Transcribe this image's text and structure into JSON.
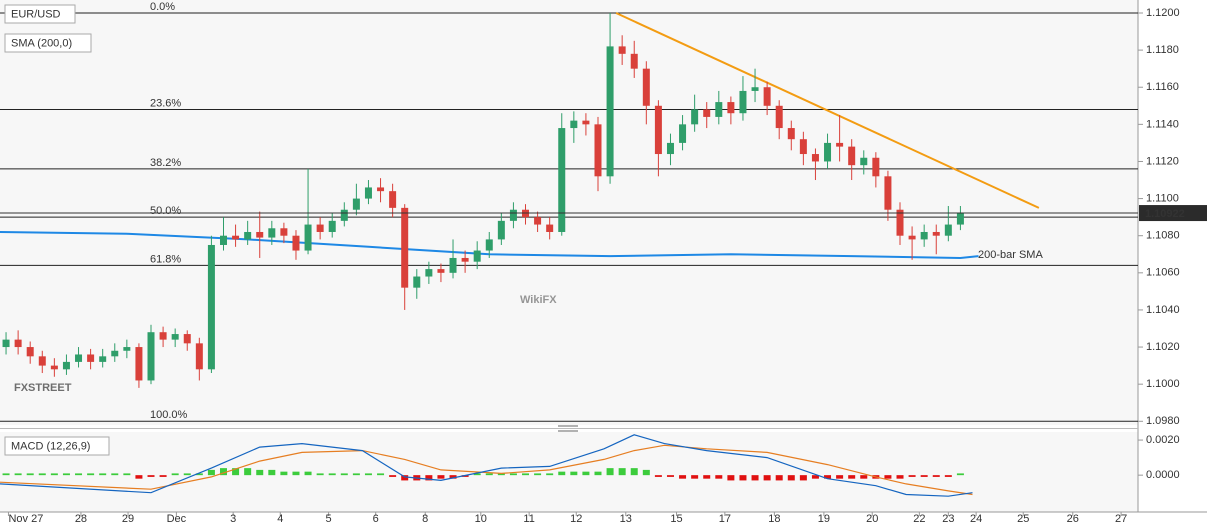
{
  "chart_data": [
    {
      "type": "candlestick",
      "title": "EUR/USD",
      "up_color": "#2f9e6a",
      "down_color": "#d9403a",
      "xlim": [
        -0.5,
        93.7
      ],
      "ylim": [
        1.0978,
        1.1207
      ],
      "yticks": [
        {
          "value": 1.098,
          "label": "1.0980"
        },
        {
          "value": 1.1,
          "label": "1.1000"
        },
        {
          "value": 1.102,
          "label": "1.1020"
        },
        {
          "value": 1.104,
          "label": "1.1040"
        },
        {
          "value": 1.106,
          "label": "1.1060"
        },
        {
          "value": 1.108,
          "label": "1.1080"
        },
        {
          "value": 1.11,
          "label": "1.1100"
        },
        {
          "value": 1.112,
          "label": "1.1120"
        },
        {
          "value": 1.114,
          "label": "1.1140"
        },
        {
          "value": 1.116,
          "label": "1.1160"
        },
        {
          "value": 1.118,
          "label": "1.1180"
        },
        {
          "value": 1.12,
          "label": "1.1200"
        }
      ],
      "ohlc": [
        [
          1.102,
          1.1028,
          1.1016,
          1.1024
        ],
        [
          1.1024,
          1.1029,
          1.1016,
          1.102
        ],
        [
          1.102,
          1.1023,
          1.1011,
          1.1015
        ],
        [
          1.1015,
          1.1018,
          1.1006,
          1.101
        ],
        [
          1.101,
          1.1014,
          1.1004,
          1.1008
        ],
        [
          1.1008,
          1.1016,
          1.1005,
          1.1012
        ],
        [
          1.1012,
          1.102,
          1.1009,
          1.1016
        ],
        [
          1.1016,
          1.1019,
          1.1008,
          1.1012
        ],
        [
          1.1012,
          1.1019,
          1.1009,
          1.1015
        ],
        [
          1.1015,
          1.1022,
          1.1012,
          1.1018
        ],
        [
          1.1018,
          1.1024,
          1.1014,
          1.102
        ],
        [
          1.102,
          1.1022,
          1.0998,
          1.1002
        ],
        [
          1.1002,
          1.1032,
          1.1,
          1.1028
        ],
        [
          1.1028,
          1.1031,
          1.102,
          1.1024
        ],
        [
          1.1024,
          1.103,
          1.102,
          1.1027
        ],
        [
          1.1027,
          1.1029,
          1.1018,
          1.1022
        ],
        [
          1.1022,
          1.1025,
          1.1002,
          1.1008
        ],
        [
          1.1008,
          1.108,
          1.1006,
          1.1075
        ],
        [
          1.1075,
          1.109,
          1.1072,
          1.108
        ],
        [
          1.108,
          1.1086,
          1.1074,
          1.1078
        ],
        [
          1.1078,
          1.1088,
          1.1075,
          1.1082
        ],
        [
          1.1082,
          1.1093,
          1.1068,
          1.1079
        ],
        [
          1.1079,
          1.1088,
          1.1075,
          1.1084
        ],
        [
          1.1084,
          1.1087,
          1.1076,
          1.108
        ],
        [
          1.108,
          1.1083,
          1.1067,
          1.1072
        ],
        [
          1.1072,
          1.1116,
          1.107,
          1.1086
        ],
        [
          1.1086,
          1.109,
          1.1078,
          1.1082
        ],
        [
          1.1082,
          1.1092,
          1.1079,
          1.1088
        ],
        [
          1.1088,
          1.1098,
          1.1085,
          1.1094
        ],
        [
          1.1094,
          1.1108,
          1.1091,
          1.11
        ],
        [
          1.11,
          1.111,
          1.1097,
          1.1106
        ],
        [
          1.1106,
          1.1111,
          1.1098,
          1.1104
        ],
        [
          1.1104,
          1.1108,
          1.109,
          1.1095
        ],
        [
          1.1095,
          1.1097,
          1.104,
          1.1052
        ],
        [
          1.1052,
          1.1062,
          1.1046,
          1.1058
        ],
        [
          1.1058,
          1.1066,
          1.1054,
          1.1062
        ],
        [
          1.1062,
          1.1065,
          1.1055,
          1.106
        ],
        [
          1.106,
          1.1078,
          1.1057,
          1.1068
        ],
        [
          1.1068,
          1.1072,
          1.106,
          1.1066
        ],
        [
          1.1066,
          1.1077,
          1.1062,
          1.1072
        ],
        [
          1.1072,
          1.1082,
          1.1068,
          1.1078
        ],
        [
          1.1078,
          1.1092,
          1.1075,
          1.1088
        ],
        [
          1.1088,
          1.1098,
          1.1084,
          1.1094
        ],
        [
          1.1094,
          1.1097,
          1.1086,
          1.109
        ],
        [
          1.109,
          1.1093,
          1.1082,
          1.1086
        ],
        [
          1.1086,
          1.109,
          1.1078,
          1.1082
        ],
        [
          1.1082,
          1.1146,
          1.108,
          1.1138
        ],
        [
          1.1138,
          1.1147,
          1.113,
          1.1142
        ],
        [
          1.1142,
          1.1146,
          1.1134,
          1.114
        ],
        [
          1.114,
          1.1144,
          1.1104,
          1.1112
        ],
        [
          1.1112,
          1.12,
          1.1108,
          1.1182
        ],
        [
          1.1182,
          1.1188,
          1.1172,
          1.1178
        ],
        [
          1.1178,
          1.1185,
          1.1165,
          1.117
        ],
        [
          1.117,
          1.1174,
          1.114,
          1.115
        ],
        [
          1.115,
          1.1153,
          1.1112,
          1.1124
        ],
        [
          1.1124,
          1.1135,
          1.1118,
          1.113
        ],
        [
          1.113,
          1.1145,
          1.1126,
          1.114
        ],
        [
          1.114,
          1.1156,
          1.1136,
          1.1148
        ],
        [
          1.1148,
          1.1152,
          1.1138,
          1.1144
        ],
        [
          1.1144,
          1.1158,
          1.114,
          1.1152
        ],
        [
          1.1152,
          1.1155,
          1.114,
          1.1146
        ],
        [
          1.1146,
          1.1166,
          1.1142,
          1.1158
        ],
        [
          1.1158,
          1.117,
          1.1152,
          1.116
        ],
        [
          1.116,
          1.1163,
          1.1145,
          1.115
        ],
        [
          1.115,
          1.1153,
          1.1132,
          1.1138
        ],
        [
          1.1138,
          1.1142,
          1.1126,
          1.1132
        ],
        [
          1.1132,
          1.1136,
          1.1118,
          1.1124
        ],
        [
          1.1124,
          1.1127,
          1.111,
          1.112
        ],
        [
          1.112,
          1.1135,
          1.1116,
          1.113
        ],
        [
          1.113,
          1.1145,
          1.112,
          1.1128
        ],
        [
          1.1128,
          1.1132,
          1.111,
          1.1118
        ],
        [
          1.1118,
          1.1126,
          1.1113,
          1.1122
        ],
        [
          1.1122,
          1.1125,
          1.1106,
          1.1112
        ],
        [
          1.1112,
          1.1115,
          1.1088,
          1.1094
        ],
        [
          1.1094,
          1.1098,
          1.1075,
          1.108
        ],
        [
          1.108,
          1.1085,
          1.1067,
          1.1078
        ],
        [
          1.1078,
          1.1086,
          1.1074,
          1.1082
        ],
        [
          1.1082,
          1.1086,
          1.107,
          1.108
        ],
        [
          1.108,
          1.1096,
          1.1077,
          1.1086
        ],
        [
          1.1086,
          1.1096,
          1.1083,
          1.1092
        ]
      ],
      "fib_levels": [
        {
          "value": 1.12,
          "label": "0.0%"
        },
        {
          "value": 1.1148,
          "label": "23.6%"
        },
        {
          "value": 1.1116,
          "label": "38.2%"
        },
        {
          "value": 1.109,
          "label": "50.0%"
        },
        {
          "value": 1.1064,
          "label": "61.8%"
        },
        {
          "value": 1.098,
          "label": "100.0%"
        }
      ],
      "sma": {
        "name": "SMA (200,0)",
        "annotation": "200-bar SMA",
        "color": "#1e88e5",
        "x": [
          -0.5,
          10,
          20,
          30,
          40,
          50,
          60,
          70,
          79,
          80.5
        ],
        "values": [
          1.1082,
          1.1081,
          1.1078,
          1.1074,
          1.107,
          1.1069,
          1.107,
          1.1069,
          1.1068,
          1.1069
        ]
      },
      "trendline": {
        "color": "#f39c12",
        "x": [
          50.5,
          85.5
        ],
        "values": [
          1.12,
          1.1095
        ]
      },
      "last_price": 1.10922,
      "watermarks": [
        "FXSTREET",
        "WikiFX"
      ]
    },
    {
      "type": "macd",
      "title": "MACD (12,26,9)",
      "xlim": [
        -0.5,
        93.7
      ],
      "ylim": [
        -0.0021,
        0.00246
      ],
      "yticks": [
        {
          "value": 0.002,
          "label": "0.0020"
        },
        {
          "value": 0,
          "label": "0.0000"
        }
      ],
      "xticks": [
        {
          "value": 0.2,
          "label": "Nov 27"
        },
        {
          "value": 6.2,
          "label": "28"
        },
        {
          "value": 10.1,
          "label": "29"
        },
        {
          "value": 14.1,
          "label": "Dec"
        },
        {
          "value": 18.8,
          "label": "3"
        },
        {
          "value": 22.7,
          "label": "4"
        },
        {
          "value": 26.7,
          "label": "5"
        },
        {
          "value": 30.6,
          "label": "6"
        },
        {
          "value": 34.7,
          "label": "8"
        },
        {
          "value": 39.3,
          "label": "10"
        },
        {
          "value": 43.3,
          "label": "11"
        },
        {
          "value": 47.2,
          "label": "12"
        },
        {
          "value": 51.3,
          "label": "13"
        },
        {
          "value": 55.5,
          "label": "15"
        },
        {
          "value": 59.5,
          "label": "17"
        },
        {
          "value": 63.6,
          "label": "18"
        },
        {
          "value": 67.7,
          "label": "19"
        },
        {
          "value": 71.7,
          "label": "20"
        },
        {
          "value": 75.6,
          "label": "22"
        },
        {
          "value": 78,
          "label": "23"
        },
        {
          "value": 80.3,
          "label": "24"
        },
        {
          "value": 84.2,
          "label": "25"
        },
        {
          "value": 88.3,
          "label": "26"
        },
        {
          "value": 92.3,
          "label": "27"
        }
      ],
      "x": [
        -0.5,
        12,
        17,
        21,
        24.5,
        29.5,
        33,
        36,
        41,
        45,
        49.5,
        52,
        54.5,
        58,
        63,
        68,
        72,
        74.5,
        78,
        80
      ],
      "macd_line": {
        "color": "#1565c0",
        "values": [
          -0.0005,
          -0.001,
          0.0004,
          0.0016,
          0.0018,
          0.0014,
          -0.0001,
          -0.0003,
          0.0004,
          0.0005,
          0.0015,
          0.0023,
          0.0018,
          0.0014,
          0.001,
          -0.0002,
          -0.0006,
          -0.0011,
          -0.0012,
          -0.001
        ]
      },
      "signal_line": {
        "color": "#e67e22",
        "values": [
          -0.0004,
          -0.0008,
          -0.0001,
          0.0008,
          0.0013,
          0.0014,
          0.0009,
          0.0003,
          0.0001,
          0.0003,
          0.0009,
          0.0014,
          0.0017,
          0.0015,
          0.0013,
          0.0006,
          -0.0001,
          -0.0005,
          -0.0009,
          -0.0011
        ]
      },
      "histogram": {
        "up_color": "#3ccc3c",
        "down_color": "#e01010",
        "values": [
          0.0001,
          0.0001,
          0.0001,
          0.0001,
          0.0001,
          0.0001,
          0.0001,
          0.0001,
          0.0001,
          0.0001,
          0.0001,
          -0.0002,
          -0.0001,
          -0.0001,
          0.0001,
          0.0001,
          0.0001,
          0.0003,
          0.0004,
          0.0004,
          0.0004,
          0.0003,
          0.0003,
          0.0002,
          0.0002,
          0.0002,
          0.0001,
          0.0001,
          0.0001,
          0.0001,
          0.0001,
          0.0001,
          -0.0001,
          -0.0003,
          -0.0003,
          -0.0003,
          -0.0002,
          -0.0002,
          -0.0001,
          0.0001,
          0.0001,
          0.0001,
          0.0001,
          0.0001,
          0.0001,
          0.0001,
          0.0002,
          0.0002,
          0.0002,
          0.0002,
          0.0004,
          0.0004,
          0.0004,
          0.0003,
          -0.0001,
          -0.0001,
          -0.0002,
          -0.0002,
          -0.0002,
          -0.0002,
          -0.0003,
          -0.0003,
          -0.0003,
          -0.0003,
          -0.0003,
          -0.0003,
          -0.0003,
          -0.0002,
          -0.0002,
          -0.0002,
          -0.0002,
          -0.0002,
          -0.0002,
          -0.0002,
          -0.0002,
          -0.0001,
          -0.0001,
          -0.0001,
          -0.0001,
          0.0001
        ]
      }
    }
  ]
}
